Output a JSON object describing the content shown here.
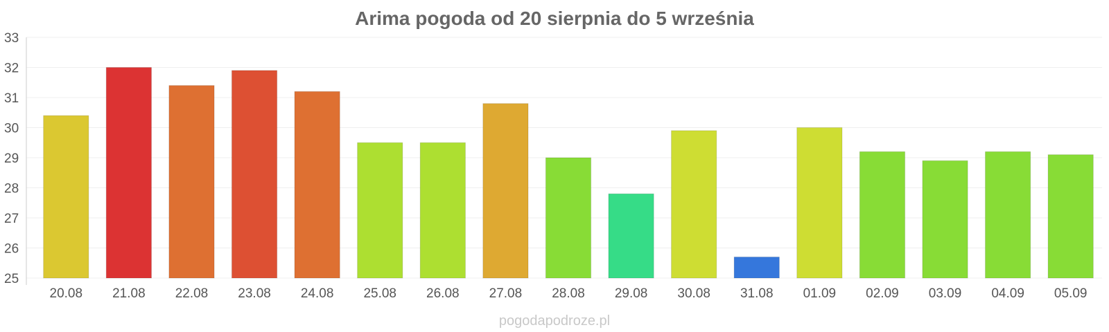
{
  "chart_data": {
    "type": "bar",
    "title": "Arima pogoda od 20 sierpnia do 5 września",
    "xlabel": "",
    "ylabel": "",
    "ylim": [
      25,
      33
    ],
    "yticks": [
      25,
      26,
      27,
      28,
      29,
      30,
      31,
      32,
      33
    ],
    "grid": true,
    "legend": "none",
    "categories": [
      "20.08",
      "21.08",
      "22.08",
      "23.08",
      "24.08",
      "25.08",
      "26.08",
      "27.08",
      "28.08",
      "29.08",
      "30.08",
      "31.08",
      "01.09",
      "02.09",
      "03.09",
      "04.09",
      "05.09"
    ],
    "values": [
      30.4,
      32.0,
      31.4,
      31.9,
      31.2,
      29.5,
      29.5,
      30.8,
      29.0,
      27.8,
      29.9,
      25.7,
      30.0,
      29.2,
      28.9,
      29.2,
      29.1
    ],
    "colors": [
      "#dbc831",
      "#dc3333",
      "#de7032",
      "#dd5033",
      "#de7032",
      "#addf31",
      "#addf31",
      "#dea932",
      "#88dc36",
      "#36dc87",
      "#cedd33",
      "#3577dc",
      "#cedd33",
      "#88dc36",
      "#88dc36",
      "#88dc36",
      "#88dc36"
    ]
  },
  "watermark": "pogodapodroze.pl"
}
